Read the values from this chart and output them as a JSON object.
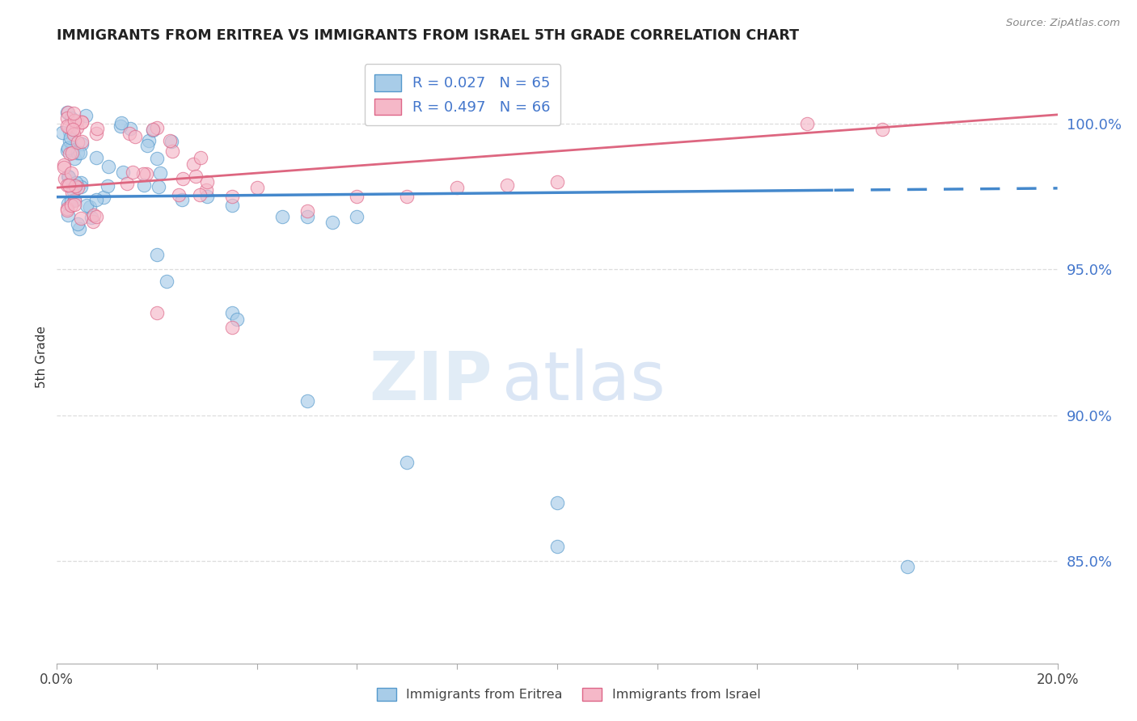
{
  "title": "IMMIGRANTS FROM ERITREA VS IMMIGRANTS FROM ISRAEL 5TH GRADE CORRELATION CHART",
  "source": "Source: ZipAtlas.com",
  "ylabel": "5th Grade",
  "ytick_positions": [
    0.85,
    0.9,
    0.95,
    1.0
  ],
  "ytick_labels": [
    "85.0%",
    "90.0%",
    "95.0%",
    "100.0%"
  ],
  "xmin": 0.0,
  "xmax": 0.2,
  "ymin": 0.815,
  "ymax": 1.025,
  "legend_r_blue": "R = 0.027",
  "legend_n_blue": "N = 65",
  "legend_r_pink": "R = 0.497",
  "legend_n_pink": "N = 66",
  "color_blue_fill": "#a8cce8",
  "color_blue_edge": "#5599cc",
  "color_pink_fill": "#f5b8c8",
  "color_pink_edge": "#dd6688",
  "color_blue_line": "#4488cc",
  "color_pink_line": "#dd6680",
  "blue_label": "Immigrants from Eritrea",
  "pink_label": "Immigrants from Israel",
  "bg_color": "#ffffff",
  "grid_color": "#dddddd",
  "ytick_color": "#4477cc",
  "xtick_color": "#444444",
  "ylabel_color": "#333333",
  "title_color": "#222222",
  "source_color": "#888888"
}
